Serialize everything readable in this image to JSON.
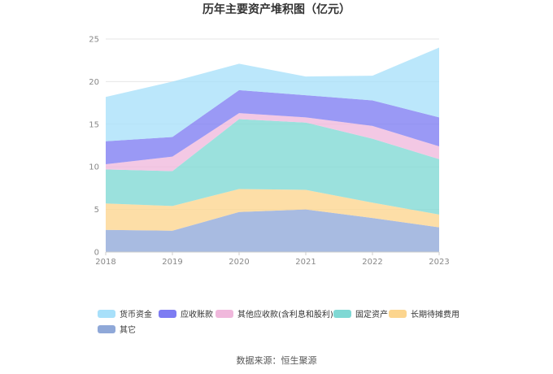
{
  "chart_data": {
    "type": "area",
    "stacked": true,
    "title": "历年主要资产堆积图（亿元）",
    "x": [
      "2018",
      "2019",
      "2020",
      "2021",
      "2022",
      "2023"
    ],
    "ylim": [
      0,
      25
    ],
    "yticks": [
      0,
      5,
      10,
      15,
      20,
      25
    ],
    "grid": true,
    "legend_position": "bottom",
    "series": [
      {
        "name": "其它",
        "color": "#8fa8d8",
        "values": [
          2.6,
          2.5,
          4.7,
          5.0,
          4.0,
          2.9
        ]
      },
      {
        "name": "长期待摊费用",
        "color": "#fcd58e",
        "values": [
          3.1,
          2.9,
          2.7,
          2.3,
          1.8,
          1.5
        ]
      },
      {
        "name": "固定资产",
        "color": "#7fd8d4",
        "values": [
          4.0,
          4.1,
          8.2,
          7.9,
          7.5,
          6.5
        ]
      },
      {
        "name": "其他应收款(含利息和股利)",
        "color": "#f0b8dc",
        "values": [
          0.6,
          1.7,
          0.7,
          0.6,
          1.5,
          1.5
        ]
      },
      {
        "name": "应收账款",
        "color": "#7d7cf2",
        "values": [
          2.7,
          2.3,
          2.7,
          2.6,
          3.0,
          3.4
        ]
      },
      {
        "name": "货币资金",
        "color": "#a8e0fa",
        "values": [
          5.2,
          6.5,
          3.1,
          2.2,
          2.9,
          8.2
        ]
      }
    ],
    "legend_order": [
      "货币资金",
      "应收账款",
      "其他应收款(含利息和股利)",
      "固定资产",
      "长期待摊费用",
      "其它"
    ]
  },
  "footer": {
    "source": "数据来源：恒生聚源"
  }
}
